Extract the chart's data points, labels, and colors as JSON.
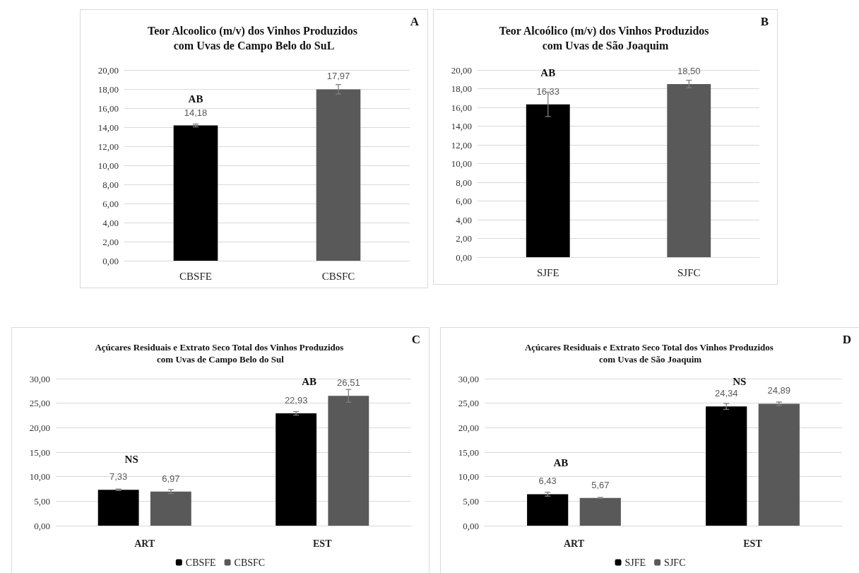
{
  "chart_data": [
    {
      "type": "bar",
      "title": "Teor Alcoolico (m/v) dos Vinhos Produzidos com Uvas de Campo Belo do SuL",
      "categories": [
        "CBSFE",
        "CBSFC"
      ],
      "values": [
        14.18,
        17.97
      ],
      "colors": [
        "#000000",
        "#595959"
      ],
      "errors": [
        0.15,
        0.5
      ],
      "value_labels": [
        "14,18",
        "17,97"
      ],
      "ylim": [
        0,
        20
      ],
      "yticks": [
        {
          "value": 0,
          "label": "0,00"
        },
        {
          "value": 2,
          "label": "2,00"
        },
        {
          "value": 4,
          "label": "4,00"
        },
        {
          "value": 6,
          "label": "6,00"
        },
        {
          "value": 8,
          "label": "8,00"
        },
        {
          "value": 10,
          "label": "10,00"
        },
        {
          "value": 12,
          "label": "12,00"
        },
        {
          "value": 14,
          "label": "14,00"
        },
        {
          "value": 16,
          "label": "16,00"
        },
        {
          "value": 18,
          "label": "18,00"
        },
        {
          "value": 20,
          "label": "20,00"
        }
      ],
      "grid": "y",
      "annotations": [
        "A",
        "AB"
      ]
    },
    {
      "type": "bar",
      "title": "Teor Alcoólico (m/v) dos Vinhos Produzidos com Uvas de São Joaquim",
      "categories": [
        "SJFE",
        "SJFC"
      ],
      "values": [
        16.33,
        18.5
      ],
      "colors": [
        "#000000",
        "#595959"
      ],
      "errors": [
        1.3,
        0.4
      ],
      "value_labels": [
        "16,33",
        "18,50"
      ],
      "ylim": [
        0,
        20
      ],
      "yticks": [
        {
          "value": 0,
          "label": "0,00"
        },
        {
          "value": 2,
          "label": "2,00"
        },
        {
          "value": 4,
          "label": "4,00"
        },
        {
          "value": 6,
          "label": "6,00"
        },
        {
          "value": 8,
          "label": "8,00"
        },
        {
          "value": 10,
          "label": "10,00"
        },
        {
          "value": 12,
          "label": "12,00"
        },
        {
          "value": 14,
          "label": "14,00"
        },
        {
          "value": 16,
          "label": "16,00"
        },
        {
          "value": 18,
          "label": "18,00"
        },
        {
          "value": 20,
          "label": "20,00"
        }
      ],
      "grid": "y",
      "annotations": [
        "B",
        "AB"
      ]
    },
    {
      "type": "bar",
      "title": "Açúcares Residuais e Extrato Seco Total dos Vinhos Produzidos com Uvas de Campo Belo do Sul",
      "categories": [
        "ART",
        "EST"
      ],
      "series": [
        {
          "name": "CBSFE",
          "color": "#000000",
          "values": [
            7.33,
            22.93
          ],
          "errors": [
            0.15,
            0.35
          ],
          "value_labels": [
            "7,33",
            "22,93"
          ]
        },
        {
          "name": "CBSFC",
          "color": "#595959",
          "values": [
            6.97,
            26.51
          ],
          "errors": [
            0.4,
            1.3
          ],
          "value_labels": [
            "6,97",
            "26,51"
          ]
        }
      ],
      "ylim": [
        0,
        30
      ],
      "yticks": [
        {
          "value": 0,
          "label": "0,00"
        },
        {
          "value": 5,
          "label": "5,00"
        },
        {
          "value": 10,
          "label": "10,00"
        },
        {
          "value": 15,
          "label": "15,00"
        },
        {
          "value": 20,
          "label": "20,00"
        },
        {
          "value": 25,
          "label": "25,00"
        },
        {
          "value": 30,
          "label": "30,00"
        }
      ],
      "grid": "y",
      "legend": "bottom",
      "annotations": [
        "C",
        "NS",
        "AB"
      ]
    },
    {
      "type": "bar",
      "title": "Açúcares Residuais e Extrato Seco Total dos Vinhos Produzidos com Uvas de São Joaquim",
      "categories": [
        "ART",
        "EST"
      ],
      "series": [
        {
          "name": "SJFE",
          "color": "#000000",
          "values": [
            6.43,
            24.34
          ],
          "errors": [
            0.4,
            0.6
          ],
          "value_labels": [
            "6,43",
            "24,34"
          ]
        },
        {
          "name": "SJFC",
          "color": "#595959",
          "values": [
            5.67,
            24.89
          ],
          "errors": [
            0.1,
            0.35
          ],
          "value_labels": [
            "5,67",
            "24,89"
          ]
        }
      ],
      "ylim": [
        0,
        30
      ],
      "yticks": [
        {
          "value": 0,
          "label": "0,00"
        },
        {
          "value": 5,
          "label": "5,00"
        },
        {
          "value": 10,
          "label": "10,00"
        },
        {
          "value": 15,
          "label": "15,00"
        },
        {
          "value": 20,
          "label": "20,00"
        },
        {
          "value": 25,
          "label": "25,00"
        },
        {
          "value": 30,
          "label": "30,00"
        }
      ],
      "grid": "y",
      "legend": "bottom",
      "annotations": [
        "D",
        "AB",
        "NS"
      ]
    }
  ]
}
